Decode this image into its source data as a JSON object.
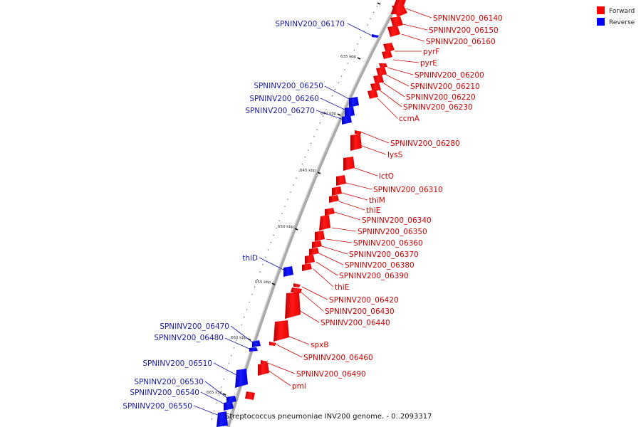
{
  "caption": "Streptococcus pneumoniae INV200 genome. - 0..2093317",
  "legend": [
    {
      "label": "Forward",
      "color": "#ff0000"
    },
    {
      "label": "Reverse",
      "color": "#0000ff"
    }
  ],
  "scale": {
    "unit_label": "kbp",
    "major_ticks": [
      "635 kbp",
      "640 kbp",
      "645 kbp",
      "650 kbp",
      "655 kbp",
      "660 kbp",
      "665 kbp"
    ]
  },
  "colors": {
    "forward": "#ff0000",
    "reverse": "#0000ff",
    "forward_label": "#cc0000",
    "reverse_label": "#1a1aaa",
    "backbone": "#999999"
  },
  "genes_forward": [
    "SPNINV200_06140",
    "SPNINV200_06150",
    "SPNINV200_06160",
    "pyrF",
    "pyrE",
    "SPNINV200_06200",
    "SPNINV200_06210",
    "SPNINV200_06220",
    "SPNINV200_06230",
    "ccmA",
    "SPNINV200_06280",
    "lysS",
    "lctO",
    "SPNINV200_06310",
    "thiM",
    "thiE",
    "SPNINV200_06340",
    "SPNINV200_06350",
    "SPNINV200_06360",
    "SPNINV200_06370",
    "SPNINV200_06380",
    "SPNINV200_06390",
    "thiE",
    "SPNINV200_06420",
    "SPNINV200_06430",
    "SPNINV200_06440",
    "spxB",
    "SPNINV200_06460",
    "SPNINV200_06490",
    "pmi"
  ],
  "genes_reverse": [
    "SPNINV200_06170",
    "SPNINV200_06250",
    "SPNINV200_06260",
    "SPNINV200_06270",
    "thiD",
    "SPNINV200_06470",
    "SPNINV200_06480",
    "SPNINV200_06510",
    "SPNINV200_06530",
    "SPNINV200_06540",
    "SPNINV200_06550"
  ]
}
